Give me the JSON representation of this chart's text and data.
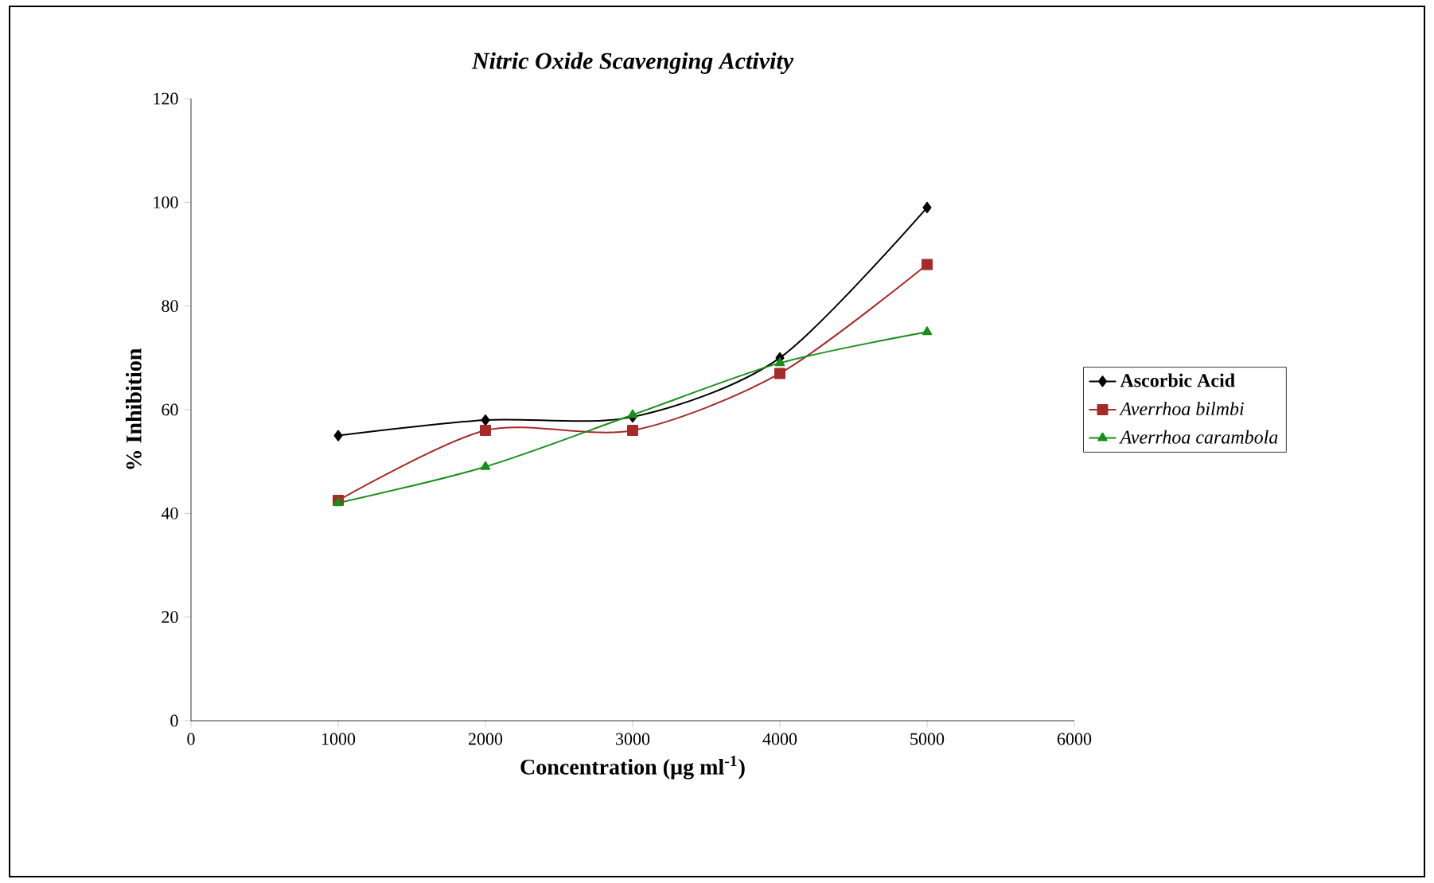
{
  "chart_data": {
    "type": "line",
    "title": "Nitric Oxide Scavenging Activity",
    "xlabel": "Concentration (µg ml$^{-1}$)",
    "ylabel": "% Inhibition",
    "x": [
      1000,
      2000,
      3000,
      4000,
      5000
    ],
    "series": [
      {
        "name": "Ascorbic Acid",
        "color": "#000000",
        "marker": "diamond",
        "values": [
          55,
          58,
          58.6,
          70,
          99
        ]
      },
      {
        "name": "Averrhoa bilmbi",
        "color": "#a52a2a",
        "marker": "square",
        "values": [
          42.5,
          56,
          56,
          67,
          88
        ]
      },
      {
        "name": "Averrhoa carambola",
        "color": "#1a8c1a",
        "marker": "triangle",
        "values": [
          42,
          49,
          59,
          69,
          75
        ]
      }
    ],
    "xlim": [
      0,
      6000
    ],
    "xticks": [
      0,
      1000,
      2000,
      3000,
      4000,
      5000,
      6000
    ],
    "ylim": [
      0,
      120
    ],
    "yticks": [
      0,
      20,
      40,
      60,
      80,
      100,
      120
    ],
    "grid": false,
    "legend": "right",
    "line_style": "solid"
  }
}
